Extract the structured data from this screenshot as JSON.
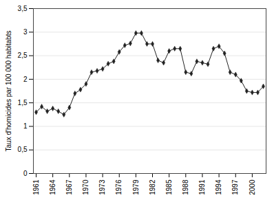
{
  "chart_data": {
    "type": "line",
    "ylabel": "Taux d'homicides par 100 000 habitabts",
    "x": [
      1961,
      1962,
      1963,
      1964,
      1965,
      1966,
      1967,
      1968,
      1969,
      1970,
      1971,
      1972,
      1973,
      1974,
      1975,
      1976,
      1977,
      1978,
      1979,
      1980,
      1981,
      1982,
      1983,
      1984,
      1985,
      1986,
      1987,
      1988,
      1989,
      1990,
      1991,
      1992,
      1993,
      1994,
      1995,
      1996,
      1997,
      1998,
      1999,
      2000,
      2001,
      2002
    ],
    "values": [
      1.3,
      1.42,
      1.32,
      1.38,
      1.32,
      1.25,
      1.4,
      1.7,
      1.78,
      1.9,
      2.15,
      2.18,
      2.22,
      2.33,
      2.38,
      2.58,
      2.72,
      2.76,
      2.98,
      2.98,
      2.75,
      2.75,
      2.4,
      2.35,
      2.6,
      2.65,
      2.65,
      2.15,
      2.12,
      2.38,
      2.35,
      2.32,
      2.65,
      2.7,
      2.55,
      2.15,
      2.1,
      1.97,
      1.75,
      1.72,
      1.72,
      1.85
    ],
    "xlim": [
      1960.5,
      2002.5
    ],
    "xticks": [
      1961,
      1964,
      1967,
      1970,
      1973,
      1976,
      1979,
      1982,
      1985,
      1988,
      1991,
      1994,
      1997,
      2000
    ],
    "ylim": [
      0,
      3.5
    ],
    "yticks": [
      0,
      {
        "value": 0.5,
        "label": "0,5"
      },
      1,
      {
        "value": 1.5,
        "label": "1,5"
      },
      2,
      {
        "value": 2.5,
        "label": "2,5"
      },
      3,
      {
        "value": 3.5,
        "label": "3,5"
      }
    ],
    "grid": "y",
    "color": "#222222",
    "marker": "diamond"
  }
}
